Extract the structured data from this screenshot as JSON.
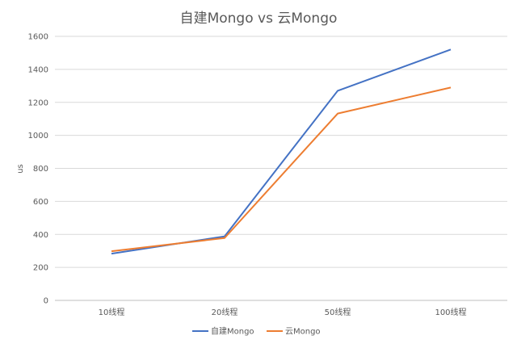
{
  "chart_data": {
    "type": "line",
    "title": "自建Mongo vs 云Mongo",
    "xlabel": "",
    "ylabel": "us",
    "categories": [
      "10线程",
      "20线程",
      "50线程",
      "100线程"
    ],
    "ylim": [
      0,
      1600
    ],
    "yticks": [
      0,
      200,
      400,
      600,
      800,
      1000,
      1200,
      1400,
      1600
    ],
    "grid": true,
    "legend": "bottom",
    "series": [
      {
        "name": "自建Mongo",
        "color": "#4472C4",
        "values": [
          283,
          388,
          1270,
          1520
        ]
      },
      {
        "name": "云Mongo",
        "color": "#ED7D31",
        "values": [
          298,
          378,
          1132,
          1290
        ]
      }
    ]
  }
}
